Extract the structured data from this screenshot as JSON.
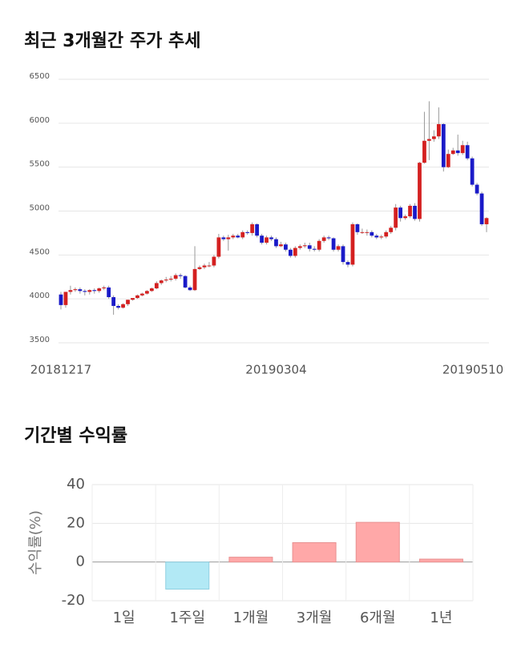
{
  "chart_data": [
    {
      "type": "candlestick",
      "title": "최근 3개월간 주가 추세",
      "categories": [
        "20181217",
        null,
        null,
        null,
        null,
        null,
        null,
        null,
        null,
        null,
        null,
        null,
        null,
        null,
        null,
        null,
        null,
        null,
        null,
        null,
        null,
        null,
        null,
        null,
        null,
        null,
        null,
        null,
        null,
        null,
        null,
        null,
        null,
        null,
        null,
        null,
        null,
        null,
        null,
        null,
        null,
        null,
        null,
        null,
        null,
        "20190304",
        null,
        null,
        null,
        null,
        null,
        null,
        null,
        null,
        null,
        null,
        null,
        null,
        null,
        null,
        null,
        null,
        null,
        null,
        null,
        null,
        null,
        null,
        null,
        null,
        null,
        null,
        null,
        null,
        null,
        null,
        null,
        null,
        null,
        null,
        null,
        null,
        null,
        null,
        null,
        null,
        null,
        "20190510",
        null,
        null
      ],
      "open": [
        4050,
        3930,
        4080,
        4100,
        4110,
        4090,
        4080,
        4100,
        4090,
        4120,
        4130,
        4020,
        3920,
        3900,
        3940,
        3990,
        4010,
        4040,
        4060,
        4090,
        4120,
        4180,
        4210,
        4220,
        4230,
        4270,
        4260,
        4130,
        4100,
        4340,
        4360,
        4380,
        4380,
        4480,
        4700,
        4680,
        4700,
        4720,
        4700,
        4760,
        4750,
        4850,
        4720,
        4640,
        4700,
        4680,
        4600,
        4620,
        4560,
        4490,
        4580,
        4600,
        4610,
        4570,
        4560,
        4660,
        4700,
        4690,
        4560,
        4600,
        4420,
        4390,
        4850,
        4760,
        4760,
        4760,
        4720,
        4700,
        4710,
        4760,
        4810,
        5040,
        4920,
        4940,
        5060,
        4910,
        5550,
        5800,
        5820,
        5850,
        5990,
        5500,
        5650,
        5690,
        5660,
        5750,
        5600,
        5300,
        5200,
        4850
      ],
      "high": [
        4080,
        4060,
        4150,
        4130,
        4130,
        4110,
        4110,
        4120,
        4130,
        4150,
        4150,
        4040,
        3940,
        3950,
        3990,
        4010,
        4050,
        4070,
        4100,
        4130,
        4200,
        4220,
        4250,
        4260,
        4290,
        4290,
        4270,
        4150,
        4600,
        4380,
        4400,
        4420,
        4500,
        4740,
        4720,
        4730,
        4740,
        4740,
        4780,
        4780,
        4870,
        4860,
        4740,
        4720,
        4720,
        4700,
        4650,
        4640,
        4580,
        4600,
        4620,
        4640,
        4640,
        4600,
        4680,
        4720,
        4720,
        4700,
        4620,
        4620,
        4440,
        4870,
        4860,
        4800,
        4790,
        4780,
        4740,
        4730,
        4780,
        4830,
        5080,
        5060,
        4960,
        5080,
        5090,
        5560,
        6130,
        6250,
        5920,
        6180,
        6000,
        5700,
        5720,
        5870,
        5800,
        5790,
        5620,
        5320,
        5220,
        4930
      ],
      "low": [
        3880,
        3900,
        4050,
        4080,
        4060,
        4040,
        4050,
        4060,
        4070,
        4100,
        4000,
        3820,
        3880,
        3890,
        3920,
        3980,
        4000,
        4030,
        4050,
        4080,
        4110,
        4160,
        4190,
        4200,
        4210,
        4230,
        4120,
        4090,
        4090,
        4330,
        4340,
        4360,
        4360,
        4460,
        4660,
        4550,
        4680,
        4690,
        4680,
        4730,
        4720,
        4700,
        4620,
        4620,
        4660,
        4580,
        4590,
        4540,
        4470,
        4470,
        4560,
        4580,
        4540,
        4540,
        4540,
        4640,
        4670,
        4540,
        4540,
        4390,
        4360,
        4370,
        4730,
        4740,
        4720,
        4700,
        4680,
        4680,
        4690,
        4740,
        4780,
        4880,
        4900,
        4920,
        4890,
        4880,
        5540,
        5580,
        5790,
        5820,
        5450,
        5490,
        5640,
        5630,
        5640,
        5580,
        5280,
        5180,
        4830,
        4760
      ],
      "close": [
        3930,
        4080,
        4100,
        4110,
        4090,
        4080,
        4100,
        4090,
        4120,
        4130,
        4020,
        3920,
        3900,
        3940,
        3990,
        4010,
        4040,
        4060,
        4090,
        4120,
        4180,
        4210,
        4220,
        4230,
        4270,
        4260,
        4130,
        4100,
        4340,
        4360,
        4380,
        4380,
        4480,
        4700,
        4680,
        4700,
        4720,
        4700,
        4760,
        4750,
        4850,
        4720,
        4640,
        4700,
        4680,
        4600,
        4620,
        4560,
        4490,
        4580,
        4600,
        4610,
        4570,
        4560,
        4660,
        4700,
        4690,
        4560,
        4600,
        4420,
        4390,
        4850,
        4760,
        4760,
        4760,
        4720,
        4700,
        4710,
        4760,
        4810,
        5040,
        4920,
        4940,
        5060,
        4910,
        5550,
        5800,
        5820,
        5850,
        5990,
        5500,
        5650,
        5690,
        5660,
        5750,
        5600,
        5300,
        5200,
        4850,
        4920
      ],
      "up_color": "#d42020",
      "down_color": "#1a1ac8",
      "ylim": [
        3500,
        6500
      ],
      "yticks": [
        3500,
        4000,
        4500,
        5000,
        5500,
        6000,
        6500
      ],
      "grid": true
    },
    {
      "type": "bar",
      "title": "기간별 수익률",
      "y_label": "수익률(%)",
      "categories": [
        "1일",
        "1주일",
        "1개월",
        "3개월",
        "6개월",
        "1년"
      ],
      "values": [
        null,
        -14,
        2.5,
        10,
        20.5,
        1.5
      ],
      "positive_color": "#ffa8a8",
      "negative_color": "#b2e9f5",
      "ylim": [
        -20,
        40
      ],
      "yticks": [
        -20,
        0,
        20,
        40
      ],
      "grid": true
    }
  ]
}
